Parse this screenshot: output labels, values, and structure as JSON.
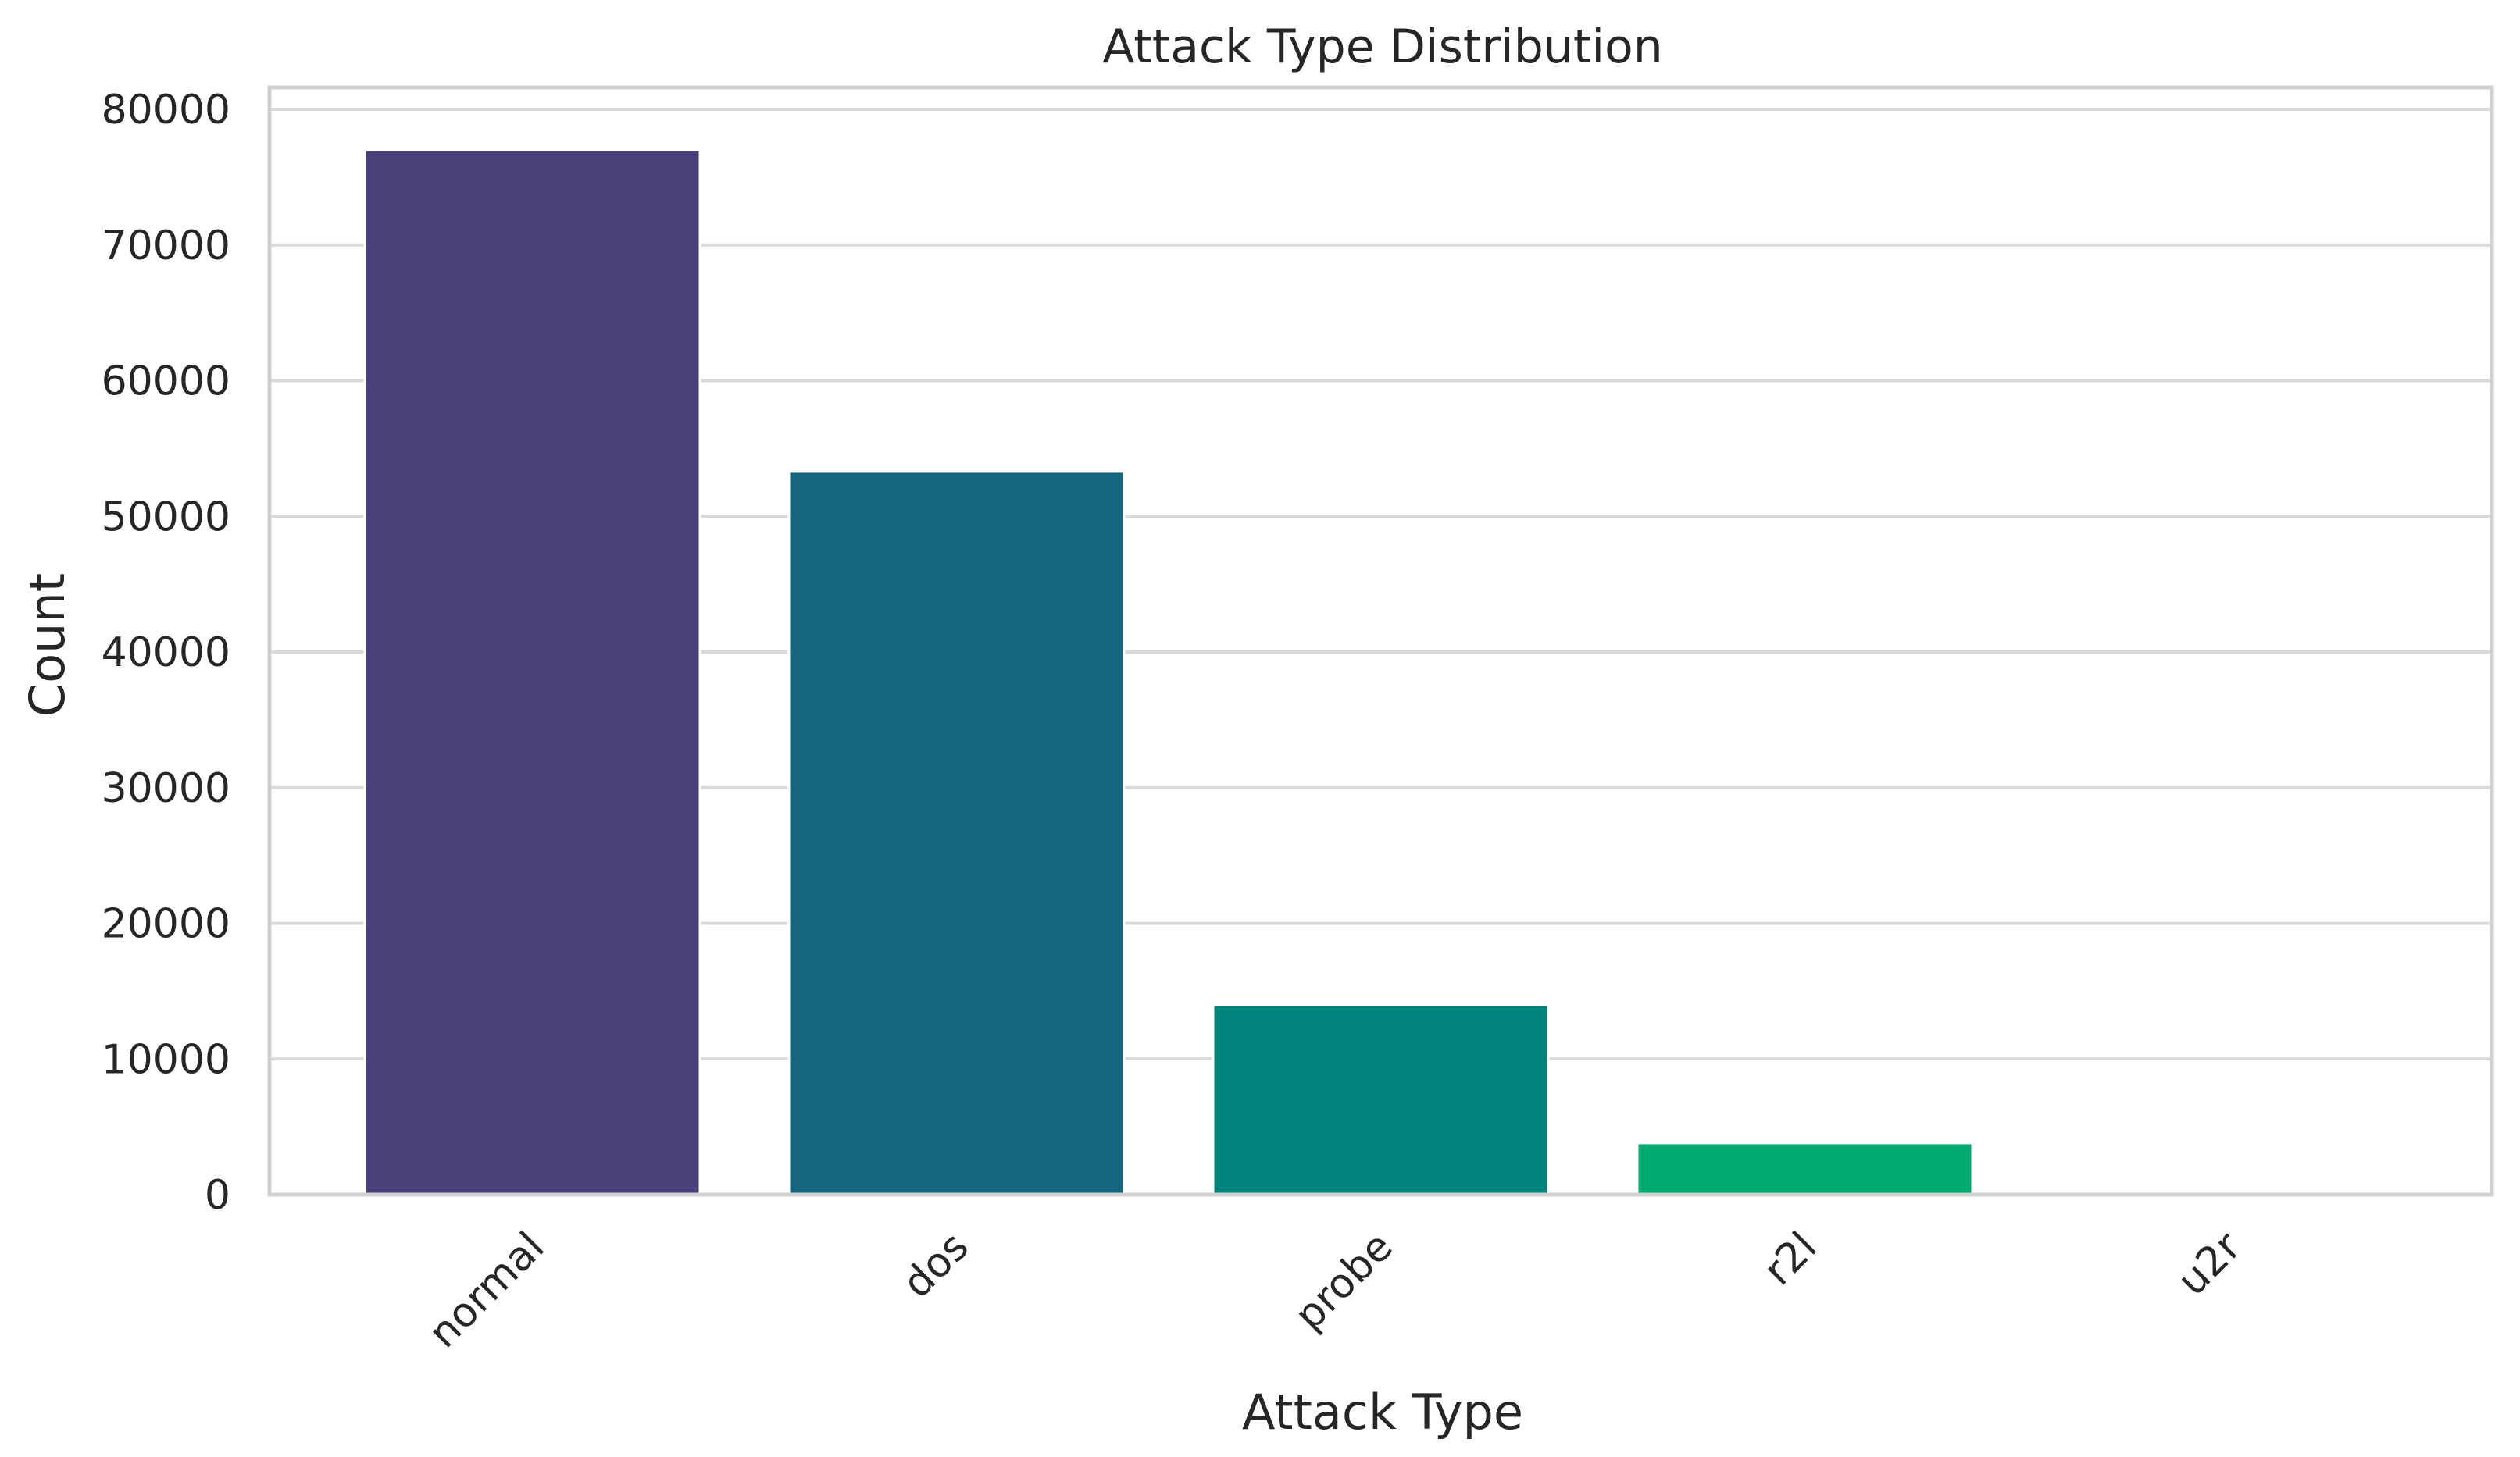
{
  "chart_data": {
    "type": "bar",
    "title": "Attack Type Distribution",
    "xlabel": "Attack Type",
    "ylabel": "Count",
    "categories": [
      "normal",
      "dos",
      "probe",
      "r2l",
      "u2r"
    ],
    "values": [
      77000,
      53300,
      14000,
      3800,
      50
    ],
    "colors": [
      "#4b3f7a",
      "#16657f",
      "#00837b",
      "#00aa72",
      "#3fbc60"
    ],
    "ylim": [
      0,
      80000
    ],
    "yticks": [
      0,
      10000,
      20000,
      30000,
      40000,
      50000,
      60000,
      70000,
      80000
    ],
    "ytick_labels": [
      "0",
      "10000",
      "20000",
      "30000",
      "40000",
      "50000",
      "60000",
      "70000",
      "80000"
    ],
    "grid": true,
    "legend": "none"
  }
}
